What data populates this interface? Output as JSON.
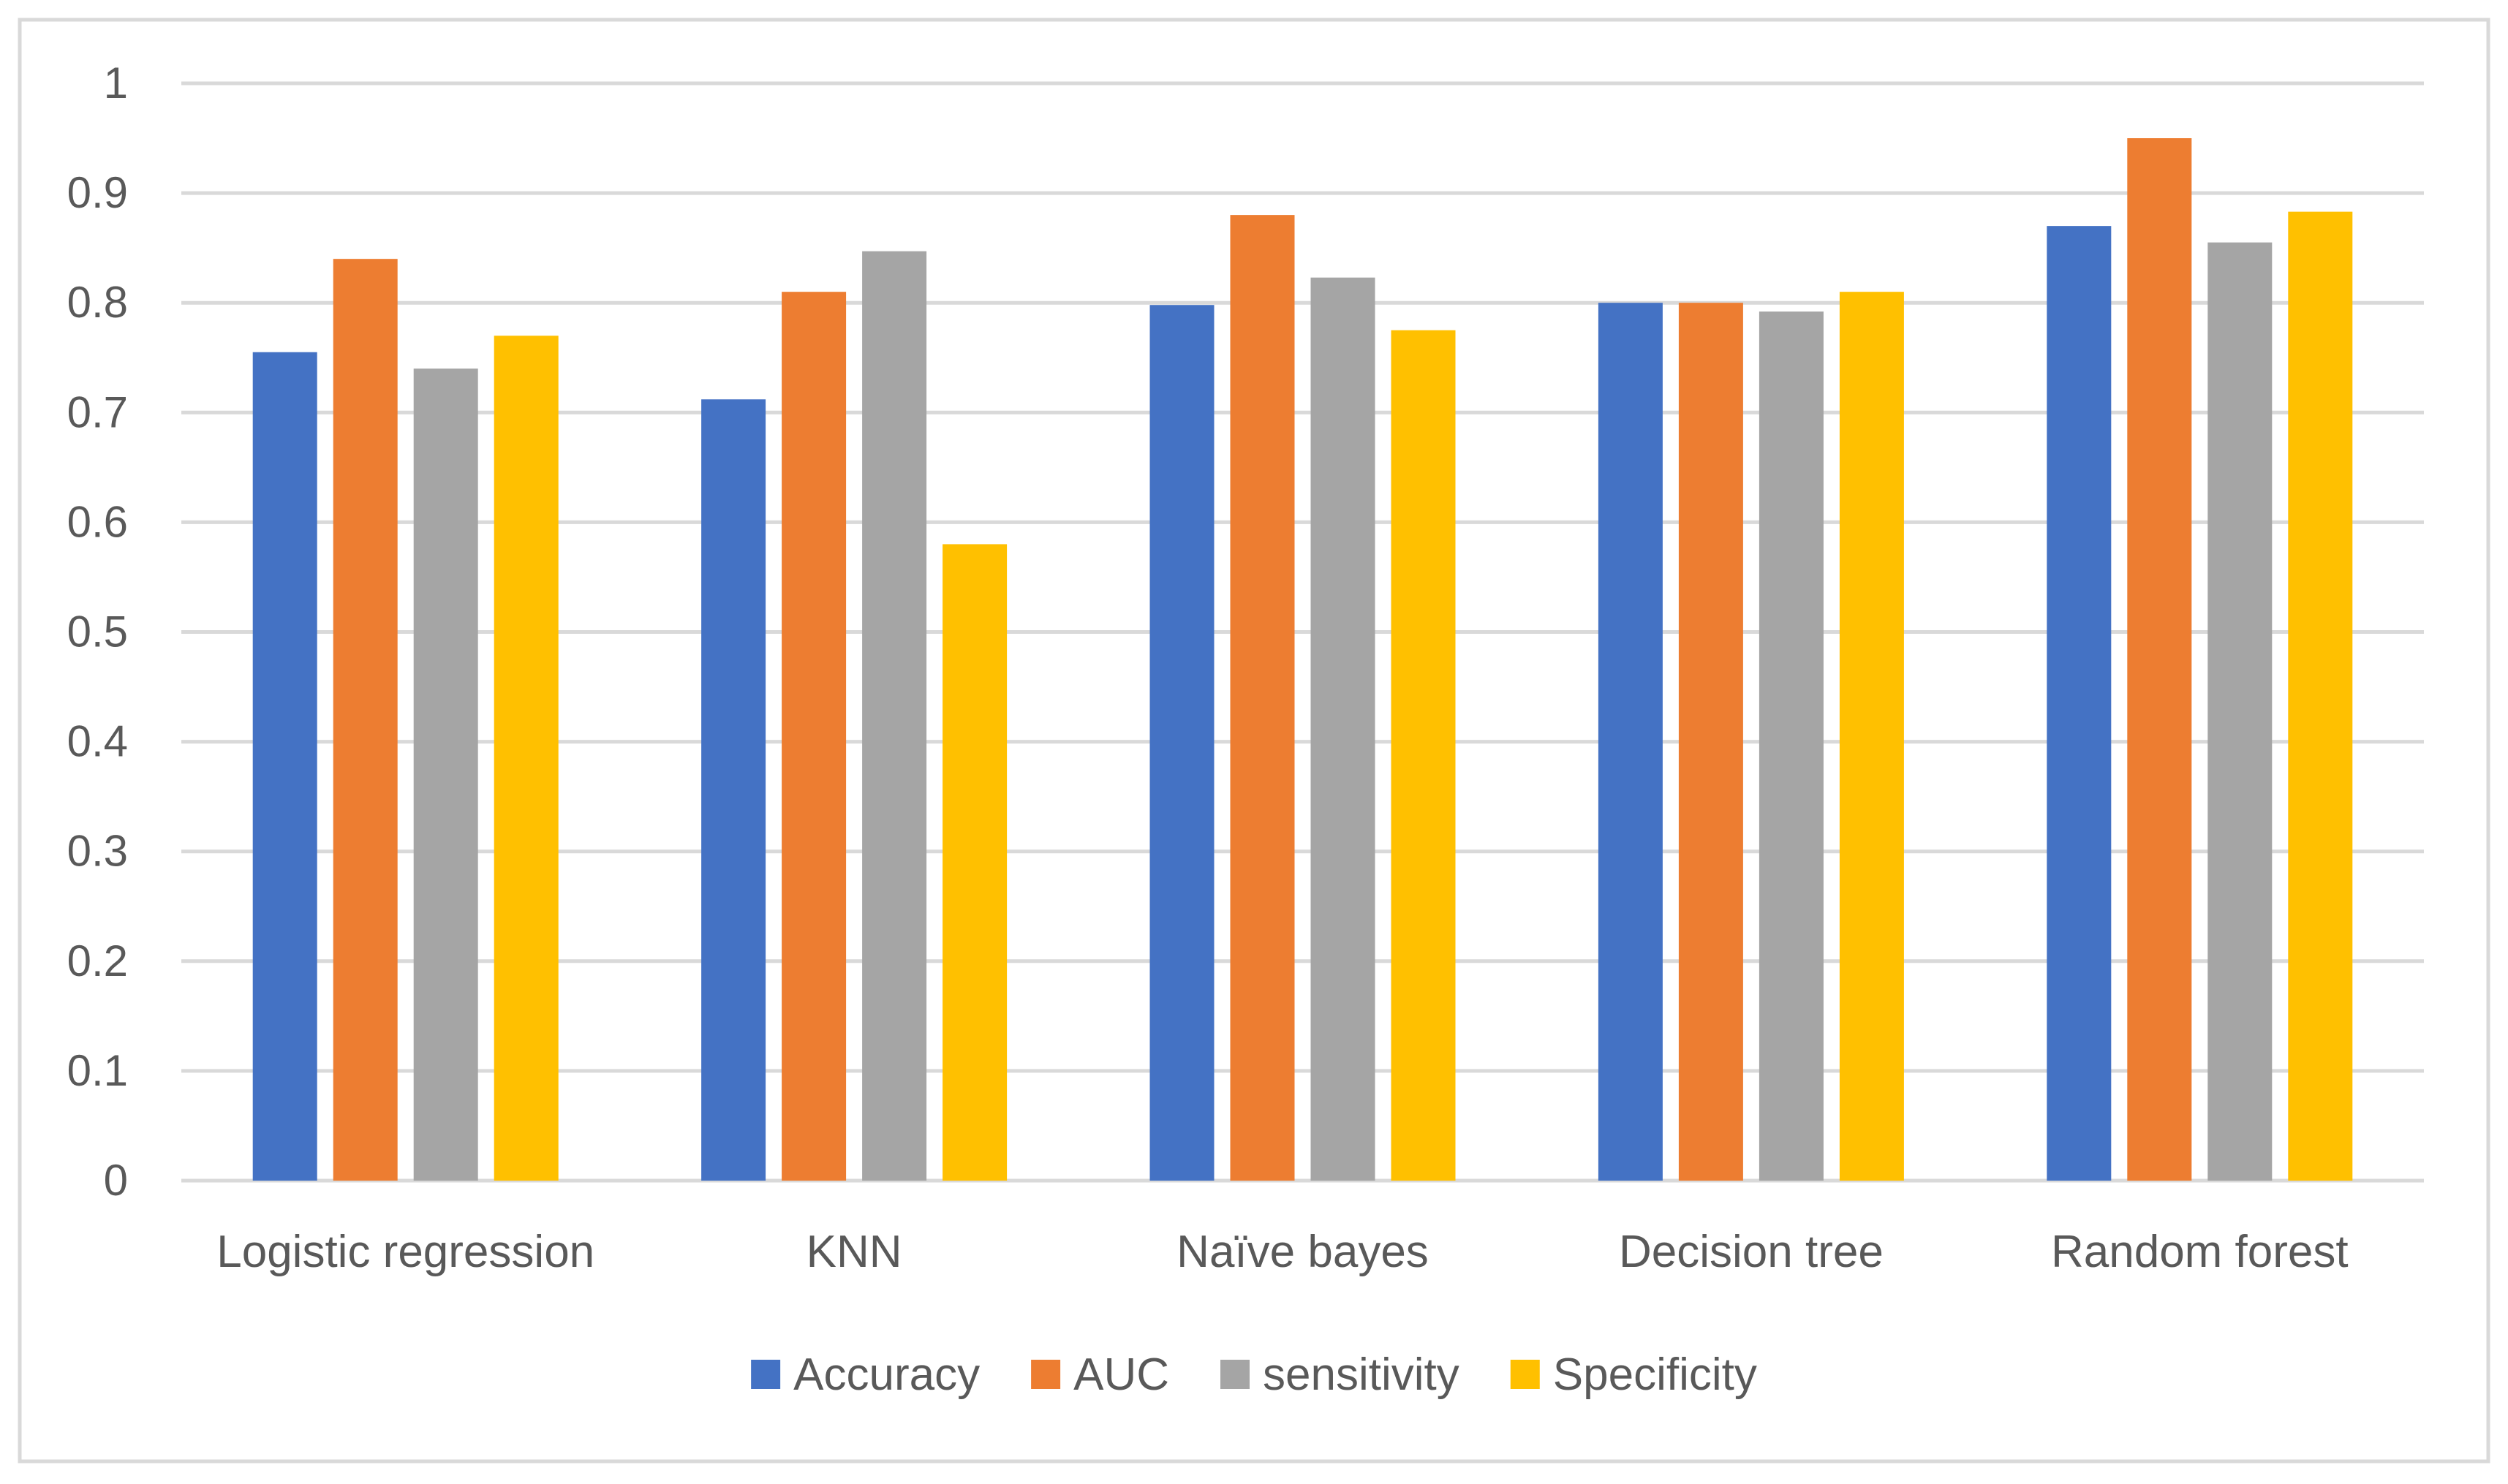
{
  "chart_data": {
    "type": "bar",
    "title": "",
    "xlabel": "",
    "ylabel": "",
    "categories": [
      "Logistic regression",
      "KNN",
      "Naïve bayes",
      "Decision tree",
      "Random forest"
    ],
    "series": [
      {
        "name": "Accuracy",
        "color": "#4472C4",
        "values": [
          0.755,
          0.712,
          0.798,
          0.8,
          0.87
        ]
      },
      {
        "name": "AUC",
        "color": "#ED7D31",
        "values": [
          0.84,
          0.81,
          0.88,
          0.8,
          0.95
        ]
      },
      {
        "name": "sensitivity",
        "color": "#A5A5A5",
        "values": [
          0.74,
          0.847,
          0.823,
          0.792,
          0.855
        ]
      },
      {
        "name": "Specificity",
        "color": "#FFC000",
        "values": [
          0.77,
          0.58,
          0.775,
          0.81,
          0.883
        ]
      }
    ],
    "ylim": [
      0,
      1
    ],
    "yticks": [
      "0",
      "0.1",
      "0.2",
      "0.3",
      "0.4",
      "0.5",
      "0.6",
      "0.7",
      "0.8",
      "0.9",
      "1"
    ],
    "grid": true,
    "legend_position": "bottom",
    "colors": {
      "gridline": "#D9D9D9",
      "border": "#D9D9D9",
      "text": "#595959"
    }
  }
}
